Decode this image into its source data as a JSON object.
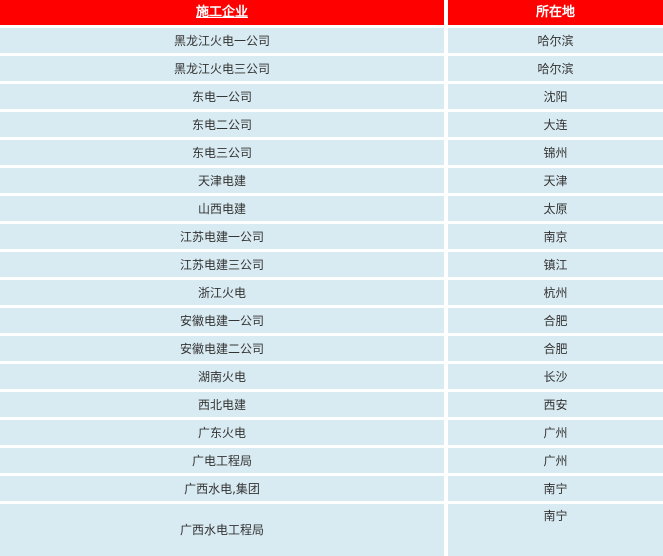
{
  "colors": {
    "header_bg": "#FF0000",
    "header_text": "#FFFFFF",
    "row_bg": "#D9EBF2",
    "row_text": "#333333"
  },
  "table": {
    "columns": [
      {
        "label": "施工企业"
      },
      {
        "label": "所在地"
      }
    ],
    "rows": [
      {
        "company": "黑龙江火电一公司",
        "location": "哈尔滨"
      },
      {
        "company": "黑龙江火电三公司",
        "location": "哈尔滨"
      },
      {
        "company": "东电一公司",
        "location": "沈阳"
      },
      {
        "company": "东电二公司",
        "location": "大连"
      },
      {
        "company": "东电三公司",
        "location": "锦州"
      },
      {
        "company": "天津电建",
        "location": "天津"
      },
      {
        "company": "山西电建",
        "location": "太原"
      },
      {
        "company": "江苏电建一公司",
        "location": "南京"
      },
      {
        "company": "江苏电建三公司",
        "location": "镇江"
      },
      {
        "company": "浙江火电",
        "location": "杭州"
      },
      {
        "company": "安徽电建一公司",
        "location": "合肥"
      },
      {
        "company": "安徽电建二公司",
        "location": "合肥"
      },
      {
        "company": "湖南火电",
        "location": "长沙"
      },
      {
        "company": "西北电建",
        "location": "西安"
      },
      {
        "company": "广东火电",
        "location": "广州"
      },
      {
        "company": "广电工程局",
        "location": "广州"
      },
      {
        "company": "广西水电,集团",
        "location": "南宁"
      },
      {
        "company": "广西水电工程局",
        "location": "南宁"
      }
    ]
  }
}
